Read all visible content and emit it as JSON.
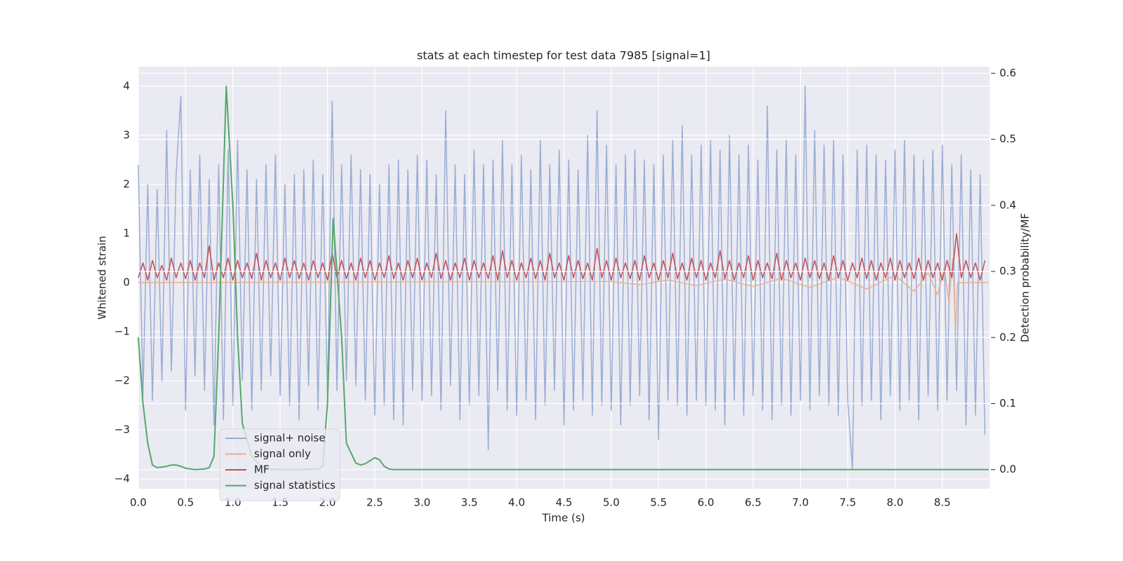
{
  "chart_data": {
    "type": "line",
    "title": "stats at each timestep for test data 7985 [signal=1]",
    "xlabel": "Time (s)",
    "ylabel": "Whitened strain",
    "y2label": "Detection probability/MF",
    "grid": true,
    "legend": "lower left",
    "xlim": [
      0,
      9.0
    ],
    "ylim": [
      -4.2,
      4.4
    ],
    "y2lim": [
      -0.029,
      0.61
    ],
    "xticks": [
      {
        "value": 0,
        "label": "0.0"
      },
      0.5,
      {
        "value": 1,
        "label": "1.0"
      },
      1.5,
      {
        "value": 2,
        "label": "2.0"
      },
      2.5,
      {
        "value": 3,
        "label": "3.0"
      },
      3.5,
      {
        "value": 4,
        "label": "4.0"
      },
      4.5,
      {
        "value": 5,
        "label": "5.0"
      },
      5.5,
      {
        "value": 6,
        "label": "6.0"
      },
      6.5,
      {
        "value": 7,
        "label": "7.0"
      },
      7.5,
      {
        "value": 8,
        "label": "8.0"
      },
      8.5
    ],
    "yticks": [
      {
        "value": -4,
        "label": "−4"
      },
      {
        "value": -3,
        "label": "−3"
      },
      {
        "value": -2,
        "label": "−2"
      },
      {
        "value": -1,
        "label": "−1"
      },
      0,
      1,
      2,
      3,
      4
    ],
    "y2ticks": [
      {
        "value": 0,
        "label": "0.0"
      },
      0.1,
      0.2,
      0.3,
      0.4,
      0.5,
      0.6
    ],
    "x": [
      0,
      0.05,
      0.1,
      0.15,
      0.2,
      0.25,
      0.3,
      0.35,
      0.4,
      0.45,
      0.5,
      0.55,
      0.6,
      0.65,
      0.7,
      0.75,
      0.8,
      0.85,
      0.9,
      0.95,
      1,
      1.05,
      1.1,
      1.15,
      1.2,
      1.25,
      1.3,
      1.35,
      1.4,
      1.45,
      1.5,
      1.55,
      1.6,
      1.65,
      1.7,
      1.75,
      1.8,
      1.85,
      1.9,
      1.95,
      2,
      2.05,
      2.1,
      2.15,
      2.2,
      2.25,
      2.3,
      2.35,
      2.4,
      2.45,
      2.5,
      2.55,
      2.6,
      2.65,
      2.7,
      2.75,
      2.8,
      2.85,
      2.9,
      2.95,
      3,
      3.05,
      3.1,
      3.15,
      3.2,
      3.25,
      3.3,
      3.35,
      3.4,
      3.45,
      3.5,
      3.55,
      3.6,
      3.65,
      3.7,
      3.75,
      3.8,
      3.85,
      3.9,
      3.95,
      4,
      4.05,
      4.1,
      4.15,
      4.2,
      4.25,
      4.3,
      4.35,
      4.4,
      4.45,
      4.5,
      4.55,
      4.6,
      4.65,
      4.7,
      4.75,
      4.8,
      4.85,
      4.9,
      4.95,
      5,
      5.05,
      5.1,
      5.15,
      5.2,
      5.25,
      5.3,
      5.35,
      5.4,
      5.45,
      5.5,
      5.55,
      5.6,
      5.65,
      5.7,
      5.75,
      5.8,
      5.85,
      5.9,
      5.95,
      6,
      6.05,
      6.1,
      6.15,
      6.2,
      6.25,
      6.3,
      6.35,
      6.4,
      6.45,
      6.5,
      6.55,
      6.6,
      6.65,
      6.7,
      6.75,
      6.8,
      6.85,
      6.9,
      6.95,
      7,
      7.05,
      7.1,
      7.15,
      7.2,
      7.25,
      7.3,
      7.35,
      7.4,
      7.45,
      7.5,
      7.55,
      7.6,
      7.65,
      7.7,
      7.75,
      7.8,
      7.85,
      7.9,
      7.95,
      8,
      8.05,
      8.1,
      8.15,
      8.2,
      8.25,
      8.3,
      8.35,
      8.4,
      8.45,
      8.5,
      8.55,
      8.6,
      8.65,
      8.7,
      8.75,
      8.8,
      8.85,
      8.9,
      8.95
    ],
    "series": [
      {
        "name": "signal+ noise",
        "color": "#9aacd3",
        "values": [
          2.4,
          -2.3,
          2.0,
          -2.4,
          1.9,
          -2.0,
          3.1,
          -1.8,
          2.2,
          3.8,
          -2.6,
          2.3,
          -1.9,
          2.6,
          -2.2,
          2.1,
          -2.9,
          2.4,
          -2.8,
          2.7,
          -2.5,
          2.9,
          -2.0,
          2.3,
          -2.6,
          2.1,
          -2.2,
          2.4,
          -1.9,
          2.6,
          -2.3,
          2.0,
          -2.5,
          2.2,
          -2.8,
          2.3,
          -2.1,
          2.5,
          -2.6,
          2.2,
          -2.3,
          3.7,
          -2.2,
          2.4,
          -2.0,
          2.6,
          -2.1,
          2.3,
          -2.4,
          2.2,
          -2.7,
          2.0,
          -2.5,
          2.4,
          -2.8,
          2.5,
          -2.9,
          2.3,
          -2.2,
          2.6,
          -2.4,
          2.5,
          -2.3,
          2.2,
          -2.6,
          3.5,
          -2.1,
          2.4,
          -2.8,
          2.2,
          -2.5,
          2.7,
          -2.3,
          2.4,
          -3.4,
          2.5,
          -2.2,
          2.9,
          -2.6,
          2.4,
          -2.7,
          2.6,
          -2.4,
          2.3,
          -2.8,
          2.9,
          -2.5,
          2.4,
          -2.2,
          2.7,
          -2.9,
          2.5,
          -2.6,
          2.3,
          -2.4,
          3.0,
          -2.7,
          3.5,
          -2.5,
          2.8,
          -2.6,
          2.4,
          -2.9,
          2.6,
          -2.5,
          2.7,
          -2.3,
          2.5,
          -2.8,
          2.4,
          -3.2,
          2.6,
          -2.4,
          2.9,
          -2.5,
          3.2,
          -2.7,
          2.6,
          -2.4,
          2.8,
          -2.5,
          2.9,
          -2.6,
          2.7,
          -2.9,
          3.0,
          -2.4,
          2.6,
          -2.7,
          2.8,
          -2.3,
          2.5,
          -2.6,
          3.6,
          -2.8,
          2.7,
          -2.5,
          2.9,
          -2.7,
          2.6,
          -2.4,
          4.0,
          -2.6,
          3.1,
          -2.3,
          2.8,
          -2.5,
          2.9,
          -2.7,
          2.6,
          -2.4,
          -3.8,
          2.7,
          -2.5,
          2.8,
          -2.4,
          2.6,
          -2.8,
          2.5,
          -2.3,
          2.7,
          -2.6,
          2.9,
          -2.4,
          2.6,
          -2.8,
          2.5,
          -2.3,
          2.7,
          -2.6,
          2.8,
          -2.4,
          2.4,
          -2.2,
          2.6,
          -2.9,
          2.3,
          -2.7,
          2.2,
          -3.1
        ]
      },
      {
        "name": "signal only",
        "color": "#e8b08e",
        "x": [
          0,
          5.0,
          5.3,
          5.6,
          5.9,
          6.2,
          6.5,
          6.8,
          7.1,
          7.4,
          7.7,
          8.0,
          8.2,
          8.35,
          8.45,
          8.52,
          8.57,
          8.61,
          8.64,
          8.66,
          8.99
        ],
        "values": [
          0,
          0.02,
          -0.04,
          0.05,
          -0.06,
          0.07,
          -0.08,
          0.09,
          -0.1,
          0.11,
          -0.13,
          0.15,
          -0.18,
          0.2,
          -0.25,
          0.3,
          -0.4,
          0.5,
          -0.95,
          0,
          0
        ]
      },
      {
        "name": "MF",
        "color": "#c44e52",
        "values": [
          0.1,
          0.4,
          0.05,
          0.45,
          0.1,
          0.35,
          0.05,
          0.5,
          0.1,
          0.4,
          0.08,
          0.45,
          0.05,
          0.4,
          0.1,
          0.75,
          0.05,
          0.4,
          0.1,
          0.5,
          0.05,
          0.45,
          0.1,
          0.4,
          0.08,
          0.6,
          0.05,
          0.45,
          0.1,
          0.4,
          0.05,
          0.5,
          0.1,
          0.45,
          0.08,
          0.4,
          0.05,
          0.45,
          0.1,
          0.4,
          0.05,
          0.6,
          0.1,
          0.45,
          0.08,
          0.4,
          0.05,
          0.5,
          0.1,
          0.45,
          0.05,
          0.4,
          0.1,
          0.55,
          0.08,
          0.4,
          0.05,
          0.45,
          0.1,
          0.5,
          0.05,
          0.4,
          0.1,
          0.6,
          0.08,
          0.45,
          0.05,
          0.4,
          0.1,
          0.5,
          0.05,
          0.45,
          0.1,
          0.4,
          0.08,
          0.55,
          0.05,
          0.65,
          0.1,
          0.45,
          0.05,
          0.4,
          0.1,
          0.5,
          0.08,
          0.45,
          0.05,
          0.6,
          0.1,
          0.4,
          0.05,
          0.55,
          0.1,
          0.45,
          0.08,
          0.4,
          0.05,
          0.7,
          0.1,
          0.45,
          0.05,
          0.5,
          0.1,
          0.4,
          0.08,
          0.45,
          0.05,
          0.55,
          0.1,
          0.4,
          0.05,
          0.45,
          0.1,
          0.6,
          0.08,
          0.4,
          0.05,
          0.5,
          0.1,
          0.45,
          0.05,
          0.4,
          0.1,
          0.65,
          0.08,
          0.45,
          0.05,
          0.4,
          0.1,
          0.55,
          0.05,
          0.45,
          0.1,
          0.4,
          0.08,
          0.6,
          0.05,
          0.45,
          0.1,
          0.4,
          0.05,
          0.5,
          0.1,
          0.45,
          0.08,
          0.4,
          0.05,
          0.55,
          0.1,
          0.45,
          0.05,
          0.4,
          0.1,
          0.5,
          0.08,
          0.45,
          0.05,
          0.4,
          0.1,
          0.5,
          0.05,
          0.45,
          0.1,
          0.4,
          0.08,
          0.5,
          0.05,
          0.45,
          0.1,
          0.4,
          0.05,
          0.45,
          0.1,
          1.0,
          0.1,
          0.45,
          0.1,
          0.4,
          0.05,
          0.45
        ]
      },
      {
        "name": "signal statistics",
        "color": "#55a868",
        "axis": "y2",
        "x": [
          0,
          0.05,
          0.1,
          0.15,
          0.2,
          0.3,
          0.35,
          0.4,
          0.45,
          0.5,
          0.6,
          0.7,
          0.75,
          0.8,
          0.85,
          0.93,
          1.0,
          1.05,
          1.1,
          1.2,
          1.3,
          1.4,
          1.5,
          1.7,
          1.9,
          1.95,
          2.0,
          2.06,
          2.1,
          2.15,
          2.2,
          2.3,
          2.35,
          2.4,
          2.5,
          2.55,
          2.6,
          2.65,
          2.7,
          8.99
        ],
        "values": [
          0.2,
          0.1,
          0.04,
          0.007,
          0.003,
          0.005,
          0.007,
          0.007,
          0.005,
          0.002,
          0,
          0.001,
          0.003,
          0.02,
          0.2,
          0.58,
          0.4,
          0.2,
          0.07,
          0.02,
          0.005,
          0.001,
          0,
          0,
          0.001,
          0.005,
          0.1,
          0.38,
          0.3,
          0.2,
          0.04,
          0.01,
          0.007,
          0.009,
          0.018,
          0.015,
          0.005,
          0.001,
          0,
          0
        ]
      }
    ]
  }
}
